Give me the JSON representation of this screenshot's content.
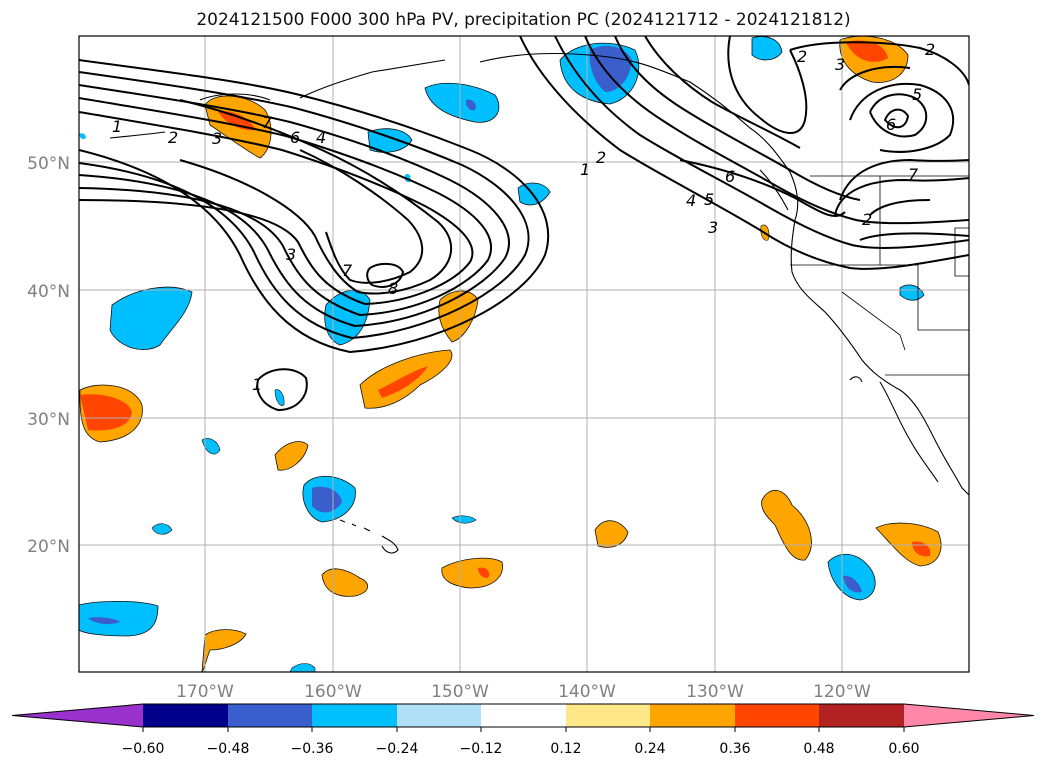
{
  "title": "2024121500 F000 300 hPa PV, precipitation PC (2024121712 - 2024121812)",
  "map": {
    "lon_labels": [
      "170°W",
      "160°W",
      "150°W",
      "140°W",
      "130°W",
      "120°W"
    ],
    "lat_labels": [
      "50°N",
      "40°N",
      "30°N",
      "20°N"
    ],
    "contour_labels": [
      {
        "text": "1"
      },
      {
        "text": "2"
      },
      {
        "text": "3"
      },
      {
        "text": "7"
      },
      {
        "text": "6"
      },
      {
        "text": "4"
      },
      {
        "text": "3"
      },
      {
        "text": "7"
      },
      {
        "text": "8"
      },
      {
        "text": "1"
      },
      {
        "text": "1"
      },
      {
        "text": "2"
      },
      {
        "text": "6"
      },
      {
        "text": "4"
      },
      {
        "text": "5"
      },
      {
        "text": "3"
      },
      {
        "text": "2"
      },
      {
        "text": "3"
      },
      {
        "text": "2"
      },
      {
        "text": "5"
      },
      {
        "text": "6"
      },
      {
        "text": "7"
      },
      {
        "text": "2"
      }
    ]
  },
  "colorbar": {
    "labels": [
      "−0.60",
      "−0.48",
      "−0.36",
      "−0.24",
      "−0.12",
      "0.12",
      "0.24",
      "0.36",
      "0.48",
      "0.60"
    ],
    "colors": [
      "#9932cc",
      "#00008b",
      "#3a5fcd",
      "#00bfff",
      "#afe0f8",
      "#ffffff",
      "#ffe88a",
      "#ffa500",
      "#ff4500",
      "#b22222",
      "#ff88aa"
    ]
  }
}
